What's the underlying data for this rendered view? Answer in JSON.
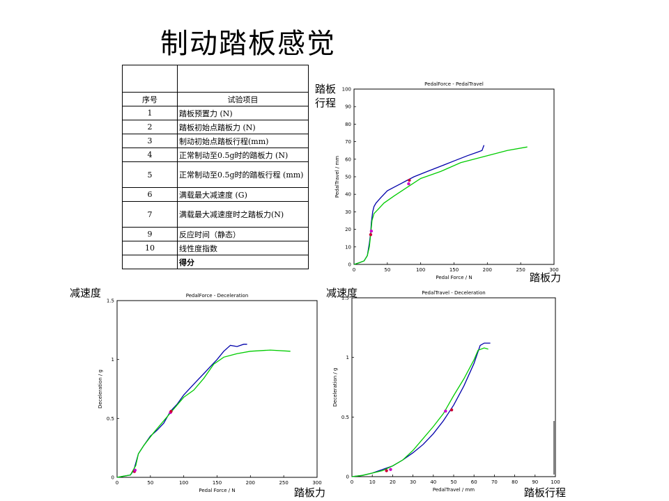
{
  "page": {
    "title": "制动踏板感觉"
  },
  "table": {
    "header": [
      "序号",
      "试验项目"
    ],
    "rows": [
      {
        "no": "1",
        "item": "踏板预置力 (N)"
      },
      {
        "no": "2",
        "item": "踏板初始点踏板力 (N)"
      },
      {
        "no": "3",
        "item": "制动初始点踏板行程(mm)"
      },
      {
        "no": "4",
        "item": "正常制动至0.5g时的踏板力 (N)"
      },
      {
        "no": "5",
        "item": "正常制动至0.5g时的踏板行程 (mm)"
      },
      {
        "no": "6",
        "item": "满载最大减速度 (G)"
      },
      {
        "no": "7",
        "item": "满载最大减速度时之踏板力(N)"
      },
      {
        "no": "9",
        "item": "反应时间（静态）"
      },
      {
        "no": "10",
        "item": "线性度指数"
      }
    ],
    "footer": "得分"
  },
  "labels": {
    "c1_y": "踏板\n行程",
    "c1_x": "踏板力",
    "c2_y": "减速度",
    "c2_x": "踏板力",
    "c3_y": "减速度",
    "c3_x": "踏板行程"
  },
  "chart_data": [
    {
      "type": "line",
      "title": "PedalForce - PedalTravel",
      "xlabel": "Pedal Force / N",
      "ylabel": "PedalTravel / mm",
      "xlim": [
        0,
        300
      ],
      "ylim": [
        0,
        100
      ],
      "xticks": [
        0,
        50,
        100,
        150,
        200,
        250,
        300
      ],
      "yticks": [
        0,
        10,
        20,
        30,
        40,
        50,
        60,
        70,
        80,
        90,
        100
      ],
      "series": [
        {
          "color": "#0000aa",
          "x": [
            0,
            8,
            15,
            20,
            23,
            25,
            26,
            28,
            30,
            33,
            40,
            50,
            60,
            70,
            80,
            90,
            110,
            130,
            150,
            170,
            185,
            192,
            195
          ],
          "y": [
            0,
            1,
            2,
            5,
            12,
            18,
            24,
            30,
            33,
            35,
            38,
            42,
            44,
            46,
            48,
            50,
            53,
            56,
            59,
            62,
            64,
            65,
            68
          ]
        },
        {
          "color": "#00cc00",
          "x": [
            0,
            8,
            15,
            20,
            23,
            25,
            27,
            30,
            35,
            45,
            60,
            80,
            100,
            130,
            160,
            200,
            230,
            260
          ],
          "y": [
            0,
            1,
            2,
            5,
            10,
            17,
            25,
            29,
            31,
            35,
            39,
            44,
            49,
            53,
            58,
            62,
            65,
            67
          ]
        }
      ],
      "markers": [
        {
          "x": 25,
          "y": 17,
          "color": "#cc0033"
        },
        {
          "x": 26,
          "y": 19,
          "color": "#cc00cc"
        },
        {
          "x": 82,
          "y": 46,
          "color": "#cc00cc"
        },
        {
          "x": 83,
          "y": 48,
          "color": "#cc0033"
        }
      ]
    },
    {
      "type": "line",
      "title": "PedalForce - Deceleration",
      "xlabel": "Pedal Force / N",
      "ylabel": "Deceleration / g",
      "xlim": [
        0,
        300
      ],
      "ylim": [
        0,
        1.5
      ],
      "xticks": [
        0,
        50,
        100,
        150,
        200,
        250,
        300
      ],
      "yticks": [
        0,
        0.5,
        1,
        1.5
      ],
      "series": [
        {
          "color": "#0000aa",
          "x": [
            0,
            10,
            20,
            25,
            28,
            32,
            40,
            50,
            60,
            70,
            80,
            90,
            100,
            110,
            120,
            130,
            140,
            150,
            160,
            170,
            180,
            190,
            195
          ],
          "y": [
            0,
            0.01,
            0.02,
            0.06,
            0.12,
            0.2,
            0.27,
            0.35,
            0.4,
            0.46,
            0.56,
            0.62,
            0.7,
            0.76,
            0.82,
            0.88,
            0.94,
            1.0,
            1.07,
            1.12,
            1.11,
            1.13,
            1.13
          ]
        },
        {
          "color": "#00cc00",
          "x": [
            0,
            10,
            20,
            28,
            32,
            40,
            55,
            70,
            85,
            100,
            115,
            130,
            145,
            160,
            180,
            200,
            230,
            260
          ],
          "y": [
            0,
            0.01,
            0.02,
            0.1,
            0.2,
            0.27,
            0.38,
            0.48,
            0.58,
            0.68,
            0.74,
            0.84,
            0.96,
            1.02,
            1.05,
            1.07,
            1.08,
            1.07
          ]
        }
      ],
      "markers": [
        {
          "x": 26,
          "y": 0.05,
          "color": "#cc0033"
        },
        {
          "x": 27,
          "y": 0.06,
          "color": "#cc00cc"
        },
        {
          "x": 80,
          "y": 0.55,
          "color": "#cc00cc"
        },
        {
          "x": 81,
          "y": 0.56,
          "color": "#cc0033"
        }
      ]
    },
    {
      "type": "line",
      "title": "PedalTravel - Deceleration",
      "xlabel": "PedalTravel / mm",
      "ylabel": "Deceleration / g",
      "xlim": [
        0,
        100
      ],
      "ylim": [
        0,
        1.5
      ],
      "xticks": [
        0,
        10,
        20,
        30,
        40,
        50,
        60,
        70,
        80,
        90,
        100
      ],
      "yticks": [
        0,
        0.5,
        1,
        1.5
      ],
      "series": [
        {
          "color": "#0000aa",
          "x": [
            0,
            5,
            10,
            15,
            20,
            25,
            30,
            35,
            40,
            45,
            50,
            55,
            60,
            63,
            65,
            67,
            68
          ],
          "y": [
            0,
            0.01,
            0.03,
            0.06,
            0.09,
            0.14,
            0.2,
            0.27,
            0.36,
            0.47,
            0.6,
            0.76,
            0.95,
            1.1,
            1.12,
            1.12,
            1.12
          ]
        },
        {
          "color": "#00cc00",
          "x": [
            0,
            5,
            10,
            15,
            20,
            25,
            30,
            35,
            40,
            45,
            50,
            55,
            60,
            62,
            65,
            67
          ],
          "y": [
            0,
            0.01,
            0.03,
            0.05,
            0.09,
            0.14,
            0.22,
            0.32,
            0.42,
            0.53,
            0.68,
            0.82,
            0.98,
            1.06,
            1.08,
            1.07
          ]
        }
      ],
      "markers": [
        {
          "x": 17,
          "y": 0.05,
          "color": "#cc0033"
        },
        {
          "x": 19,
          "y": 0.06,
          "color": "#cc00cc"
        },
        {
          "x": 46,
          "y": 0.55,
          "color": "#cc00cc"
        },
        {
          "x": 49,
          "y": 0.56,
          "color": "#cc0033"
        }
      ]
    }
  ]
}
